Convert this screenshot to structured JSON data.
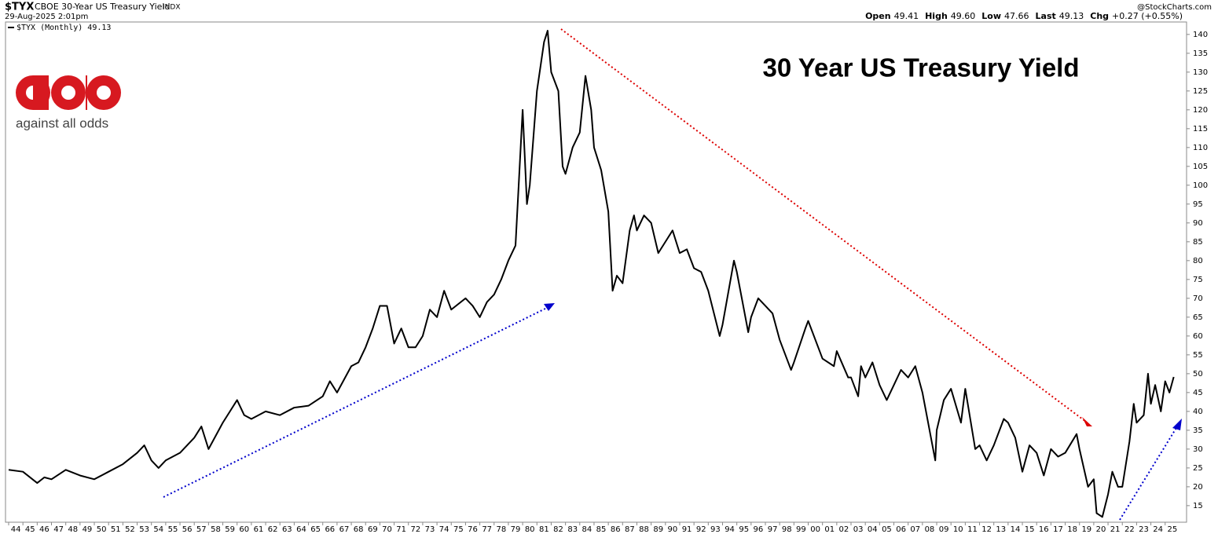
{
  "chart_data": {
    "type": "line",
    "symbol": "$TYX",
    "description": "CBOE 30-Year US Treasury Yield",
    "exchange": "INDX",
    "date": "29-Aug-2025 2:01pm",
    "quote": [
      {
        "label": "Open",
        "value": "49.41"
      },
      {
        "label": "High",
        "value": "49.60"
      },
      {
        "label": "Low",
        "value": "47.66"
      },
      {
        "label": "Last",
        "value": "49.13"
      },
      {
        "label": "Chg",
        "value": "+0.27 (+0.55%)"
      }
    ],
    "credit": "@StockCharts.com",
    "title": "30 Year US Treasury Yield",
    "logo_text": "against all odds",
    "x": [
      1944,
      1945,
      1946,
      1946.5,
      1947,
      1948,
      1949,
      1950,
      1951,
      1952,
      1953,
      1953.5,
      1954,
      1954.5,
      1955,
      1956,
      1957,
      1957.5,
      1958,
      1959,
      1959.5,
      1960,
      1960.5,
      1961,
      1962,
      1963,
      1964,
      1965,
      1966,
      1966.5,
      1967,
      1968,
      1968.5,
      1969,
      1969.5,
      1970,
      1970.5,
      1971,
      1971.5,
      1972,
      1972.5,
      1973,
      1973.5,
      1974,
      1974.5,
      1975,
      1976,
      1976.5,
      1977,
      1977.5,
      1978,
      1978.5,
      1979,
      1979.5,
      1980,
      1980.3,
      1980.5,
      1981,
      1981.5,
      1981.75,
      1982,
      1982.5,
      1982.8,
      1983,
      1983.5,
      1984,
      1984.4,
      1984.8,
      1985,
      1985.5,
      1986,
      1986.3,
      1986.6,
      1987,
      1987.5,
      1987.8,
      1988,
      1988.5,
      1989,
      1989.5,
      1990,
      1990.5,
      1991,
      1991.5,
      1992,
      1992.5,
      1993,
      1993.8,
      1994,
      1994.8,
      1995,
      1995.8,
      1996,
      1996.5,
      1997,
      1997.5,
      1998,
      1998.8,
      1999,
      1999.8,
      2000,
      2000.8,
      2001,
      2001.8,
      2002,
      2002.8,
      2003,
      2003.5,
      2003.7,
      2004,
      2004.5,
      2005,
      2005.5,
      2006,
      2006.5,
      2007,
      2007.5,
      2008,
      2008.9,
      2009,
      2009.5,
      2010,
      2010.7,
      2011,
      2011.7,
      2012,
      2012.5,
      2013,
      2013.7,
      2014,
      2014.5,
      2015,
      2015.5,
      2016,
      2016.5,
      2017,
      2017.5,
      2018,
      2018.8,
      2019,
      2019.6,
      2020,
      2020.2,
      2020.6,
      2021,
      2021.3,
      2021.7,
      2022,
      2022.5,
      2022.8,
      2023,
      2023.5,
      2023.8,
      2024,
      2024.3,
      2024.7,
      2025,
      2025.3,
      2025.6
    ],
    "series": [
      {
        "name": "$TYX (Monthly) 49.13",
        "color": "#000000",
        "values": [
          24.5,
          24,
          21,
          22.5,
          22,
          24.5,
          23,
          22,
          24,
          26,
          29,
          31,
          27,
          25,
          27,
          29,
          33,
          36,
          30,
          37,
          40,
          43,
          39,
          38,
          40,
          39,
          41,
          41.5,
          44,
          48,
          45,
          52,
          53,
          57,
          62,
          68,
          68,
          58,
          62,
          57,
          57,
          60,
          67,
          65,
          72,
          67,
          70,
          68,
          65,
          69,
          71,
          75,
          80,
          84,
          120,
          95,
          100,
          125,
          138,
          141,
          130,
          125,
          105,
          103,
          110,
          114,
          129,
          120,
          110,
          104,
          93,
          72,
          76,
          74,
          88,
          92,
          88,
          92,
          90,
          82,
          85,
          88,
          82,
          83,
          78,
          77,
          72,
          60,
          63,
          80,
          77,
          61,
          65,
          70,
          68,
          66,
          59,
          51,
          53,
          62,
          64,
          56,
          54,
          52,
          56,
          49,
          49,
          44,
          52,
          49,
          53,
          47,
          43,
          47,
          51,
          49,
          52,
          45,
          27,
          35,
          43,
          46,
          37,
          46,
          30,
          31,
          27,
          31,
          38,
          37,
          33,
          24,
          31,
          29,
          23,
          30,
          28,
          29,
          34,
          30,
          20,
          22,
          13,
          12,
          18,
          24,
          20,
          20,
          32,
          42,
          37,
          39,
          50,
          42,
          47,
          40,
          48,
          45,
          49.13
        ]
      }
    ],
    "xlim": [
      1943.78,
      2026.5
    ],
    "xticks": [
      {
        "value": 1944,
        "label": "44"
      },
      {
        "value": 1945,
        "label": "45"
      },
      {
        "value": 1946,
        "label": "46"
      },
      {
        "value": 1947,
        "label": "47"
      },
      {
        "value": 1948,
        "label": "48"
      },
      {
        "value": 1949,
        "label": "49"
      },
      {
        "value": 1950,
        "label": "50"
      },
      {
        "value": 1951,
        "label": "51"
      },
      {
        "value": 1952,
        "label": "52"
      },
      {
        "value": 1953,
        "label": "53"
      },
      {
        "value": 1954,
        "label": "54"
      },
      {
        "value": 1955,
        "label": "55"
      },
      {
        "value": 1956,
        "label": "56"
      },
      {
        "value": 1957,
        "label": "57"
      },
      {
        "value": 1958,
        "label": "58"
      },
      {
        "value": 1959,
        "label": "59"
      },
      {
        "value": 1960,
        "label": "60"
      },
      {
        "value": 1961,
        "label": "61"
      },
      {
        "value": 1962,
        "label": "62"
      },
      {
        "value": 1963,
        "label": "63"
      },
      {
        "value": 1964,
        "label": "64"
      },
      {
        "value": 1965,
        "label": "65"
      },
      {
        "value": 1966,
        "label": "66"
      },
      {
        "value": 1967,
        "label": "67"
      },
      {
        "value": 1968,
        "label": "68"
      },
      {
        "value": 1969,
        "label": "69"
      },
      {
        "value": 1970,
        "label": "70"
      },
      {
        "value": 1971,
        "label": "71"
      },
      {
        "value": 1972,
        "label": "72"
      },
      {
        "value": 1973,
        "label": "73"
      },
      {
        "value": 1974,
        "label": "74"
      },
      {
        "value": 1975,
        "label": "75"
      },
      {
        "value": 1976,
        "label": "76"
      },
      {
        "value": 1977,
        "label": "77"
      },
      {
        "value": 1978,
        "label": "78"
      },
      {
        "value": 1979,
        "label": "79"
      },
      {
        "value": 1980,
        "label": "80"
      },
      {
        "value": 1981,
        "label": "81"
      },
      {
        "value": 1982,
        "label": "82"
      },
      {
        "value": 1983,
        "label": "83"
      },
      {
        "value": 1984,
        "label": "84"
      },
      {
        "value": 1985,
        "label": "85"
      },
      {
        "value": 1986,
        "label": "86"
      },
      {
        "value": 1987,
        "label": "87"
      },
      {
        "value": 1988,
        "label": "88"
      },
      {
        "value": 1989,
        "label": "89"
      },
      {
        "value": 1990,
        "label": "90"
      },
      {
        "value": 1991,
        "label": "91"
      },
      {
        "value": 1992,
        "label": "92"
      },
      {
        "value": 1993,
        "label": "93"
      },
      {
        "value": 1994,
        "label": "94"
      },
      {
        "value": 1995,
        "label": "95"
      },
      {
        "value": 1996,
        "label": "96"
      },
      {
        "value": 1997,
        "label": "97"
      },
      {
        "value": 1998,
        "label": "98"
      },
      {
        "value": 1999,
        "label": "99"
      },
      {
        "value": 2000,
        "label": "00"
      },
      {
        "value": 2001,
        "label": "01"
      },
      {
        "value": 2002,
        "label": "02"
      },
      {
        "value": 2003,
        "label": "03"
      },
      {
        "value": 2004,
        "label": "04"
      },
      {
        "value": 2005,
        "label": "05"
      },
      {
        "value": 2006,
        "label": "06"
      },
      {
        "value": 2007,
        "label": "07"
      },
      {
        "value": 2008,
        "label": "08"
      },
      {
        "value": 2009,
        "label": "09"
      },
      {
        "value": 2010,
        "label": "10"
      },
      {
        "value": 2011,
        "label": "11"
      },
      {
        "value": 2012,
        "label": "12"
      },
      {
        "value": 2013,
        "label": "13"
      },
      {
        "value": 2014,
        "label": "14"
      },
      {
        "value": 2015,
        "label": "15"
      },
      {
        "value": 2016,
        "label": "16"
      },
      {
        "value": 2017,
        "label": "17"
      },
      {
        "value": 2018,
        "label": "18"
      },
      {
        "value": 2019,
        "label": "19"
      },
      {
        "value": 2020,
        "label": "20"
      },
      {
        "value": 2021,
        "label": "21"
      },
      {
        "value": 2022,
        "label": "22"
      },
      {
        "value": 2023,
        "label": "23"
      },
      {
        "value": 2024,
        "label": "24"
      },
      {
        "value": 2025,
        "label": "25"
      }
    ],
    "ylim": [
      10.6,
      143.3
    ],
    "yticks": [
      15,
      20,
      25,
      30,
      35,
      40,
      45,
      50,
      55,
      60,
      65,
      70,
      75,
      80,
      85,
      90,
      95,
      100,
      105,
      110,
      115,
      120,
      125,
      130,
      135,
      140
    ],
    "grid": false
  }
}
